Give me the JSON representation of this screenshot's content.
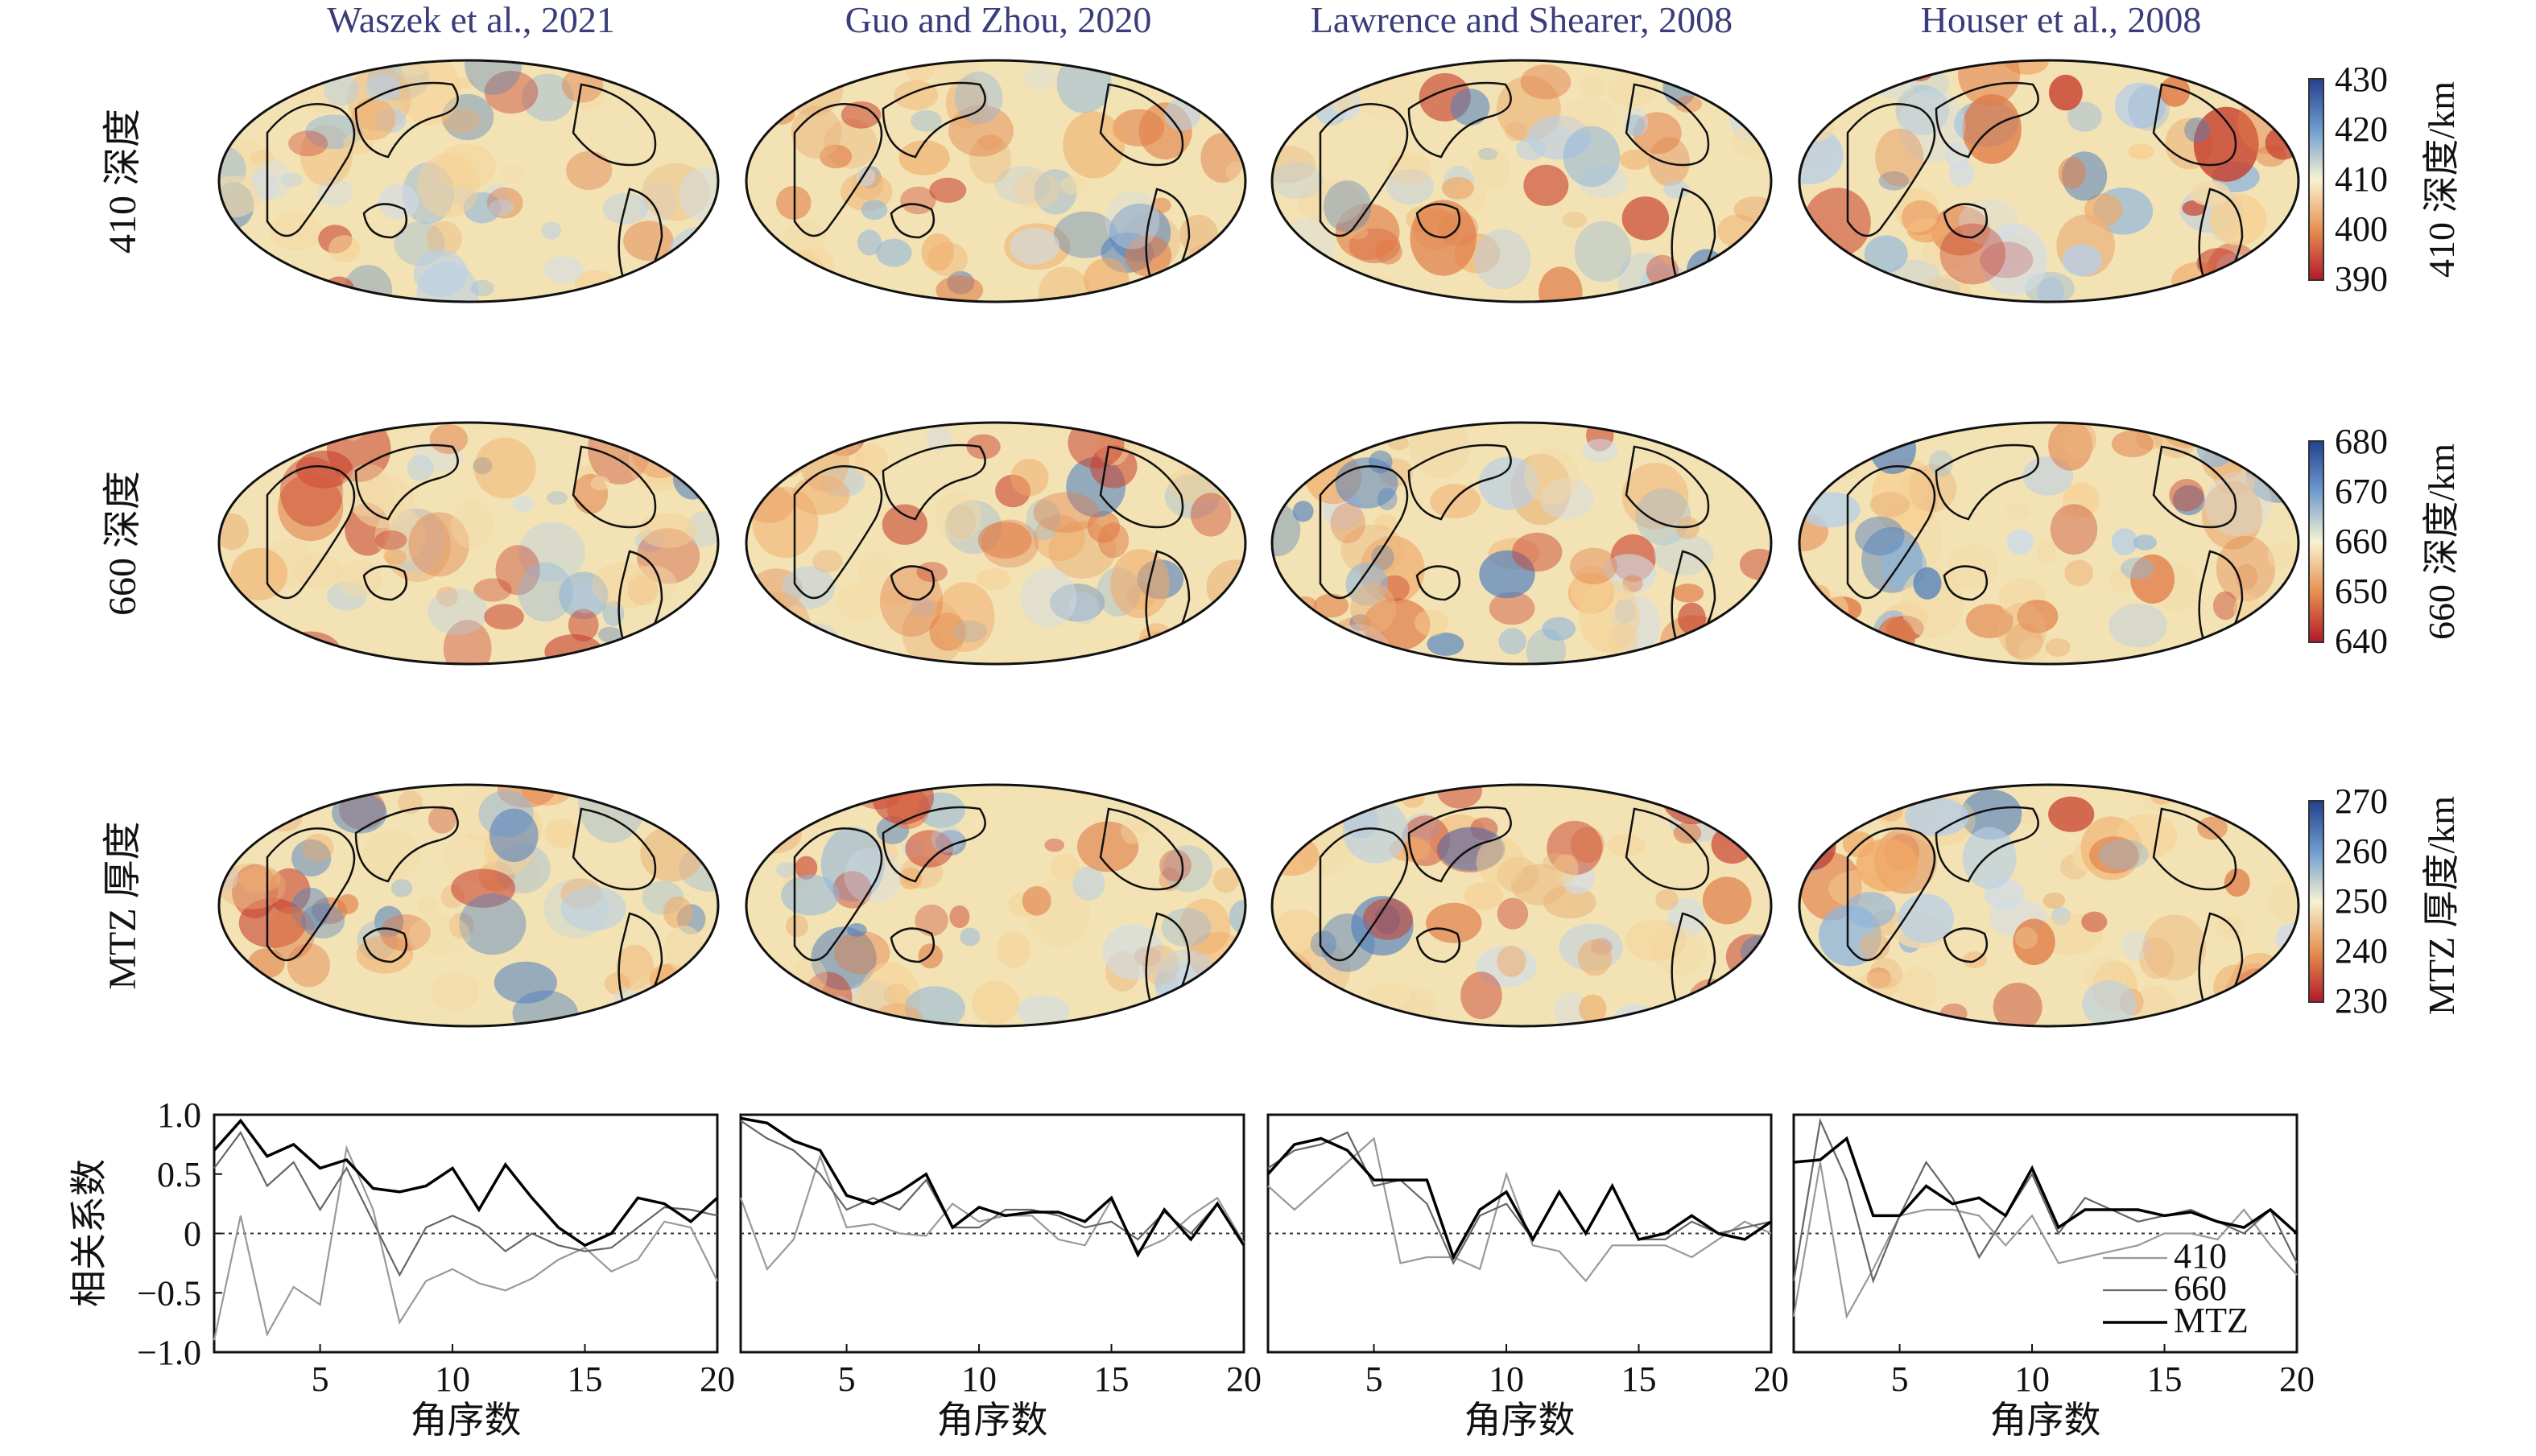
{
  "figure": {
    "columns": [
      {
        "title": "Waszek et al., 2021"
      },
      {
        "title": "Guo and Zhou, 2020"
      },
      {
        "title": "Lawrence and Shearer, 2008"
      },
      {
        "title": "Houser et al., 2008"
      }
    ],
    "rows": [
      {
        "label": "410 深度",
        "colorbar": {
          "label": "410 深度/km",
          "ticks": [
            "430",
            "420",
            "410",
            "400",
            "390"
          ]
        }
      },
      {
        "label": "660 深度",
        "colorbar": {
          "label": "660 深度/km",
          "ticks": [
            "680",
            "670",
            "660",
            "650",
            "640"
          ]
        }
      },
      {
        "label": "MTZ 厚度",
        "colorbar": {
          "label": "MTZ 厚度/km",
          "ticks": [
            "270",
            "260",
            "250",
            "240",
            "230"
          ]
        }
      }
    ],
    "colormap": {
      "low": "#b2182b",
      "mid": "#f7f3d2",
      "high": "#2c5ea8"
    }
  },
  "chart_data": {
    "type": "line",
    "ylabel": "相关系数",
    "xlabel": "角序数",
    "xlim": [
      1,
      20
    ],
    "ylim": [
      -1,
      1
    ],
    "xticks": [
      "5",
      "10",
      "15",
      "20"
    ],
    "yticks": [
      "1.0",
      "0.5",
      "0",
      "−0.5",
      "−1.0"
    ],
    "x": [
      1,
      2,
      3,
      4,
      5,
      6,
      7,
      8,
      9,
      10,
      11,
      12,
      13,
      14,
      15,
      16,
      17,
      18,
      19,
      20
    ],
    "legend": [
      "410",
      "660",
      "MTZ"
    ],
    "panels": [
      {
        "series": [
          {
            "name": "410",
            "color": "#999999",
            "values": [
              -0.9,
              0.15,
              -0.85,
              -0.45,
              -0.6,
              0.72,
              0.2,
              -0.75,
              -0.4,
              -0.3,
              -0.42,
              -0.48,
              -0.38,
              -0.22,
              -0.12,
              -0.32,
              -0.22,
              0.1,
              0.05,
              -0.4
            ]
          },
          {
            "name": "660",
            "color": "#666666",
            "values": [
              0.55,
              0.85,
              0.4,
              0.6,
              0.2,
              0.55,
              0.1,
              -0.35,
              0.05,
              0.15,
              0.05,
              -0.15,
              0.0,
              -0.1,
              -0.15,
              -0.12,
              0.05,
              0.22,
              0.2,
              0.15
            ]
          },
          {
            "name": "MTZ",
            "color": "#000000",
            "values": [
              0.7,
              0.95,
              0.65,
              0.75,
              0.55,
              0.62,
              0.38,
              0.35,
              0.4,
              0.55,
              0.2,
              0.58,
              0.3,
              0.05,
              -0.1,
              0.0,
              0.3,
              0.25,
              0.1,
              0.3
            ]
          }
        ]
      },
      {
        "series": [
          {
            "name": "410",
            "color": "#999999",
            "values": [
              0.3,
              -0.3,
              -0.05,
              0.65,
              0.05,
              0.08,
              0.0,
              -0.02,
              0.25,
              0.1,
              0.15,
              0.15,
              -0.05,
              -0.1,
              0.28,
              -0.15,
              -0.05,
              0.15,
              0.3,
              -0.08
            ]
          },
          {
            "name": "660",
            "color": "#666666",
            "values": [
              0.95,
              0.8,
              0.7,
              0.5,
              0.2,
              0.3,
              0.2,
              0.45,
              0.05,
              0.05,
              0.2,
              0.2,
              0.15,
              0.05,
              0.1,
              -0.05,
              0.18,
              0.0,
              0.25,
              -0.1
            ]
          },
          {
            "name": "MTZ",
            "color": "#000000",
            "values": [
              0.97,
              0.93,
              0.78,
              0.7,
              0.32,
              0.25,
              0.35,
              0.5,
              0.05,
              0.22,
              0.15,
              0.18,
              0.18,
              0.1,
              0.3,
              -0.18,
              0.2,
              -0.05,
              0.25,
              -0.1
            ]
          }
        ]
      },
      {
        "series": [
          {
            "name": "410",
            "color": "#999999",
            "values": [
              0.4,
              0.2,
              0.4,
              0.6,
              0.8,
              -0.25,
              -0.2,
              -0.2,
              -0.3,
              0.5,
              -0.1,
              -0.15,
              -0.4,
              -0.1,
              -0.1,
              -0.1,
              -0.2,
              -0.05,
              0.1,
              0.0
            ]
          },
          {
            "name": "660",
            "color": "#666666",
            "values": [
              0.55,
              0.7,
              0.75,
              0.85,
              0.4,
              0.45,
              0.25,
              -0.25,
              0.15,
              0.25,
              -0.05,
              0.35,
              0.0,
              0.4,
              -0.05,
              -0.05,
              0.1,
              0.0,
              0.05,
              0.1
            ]
          },
          {
            "name": "MTZ",
            "color": "#000000",
            "values": [
              0.5,
              0.75,
              0.8,
              0.7,
              0.45,
              0.45,
              0.45,
              -0.2,
              0.2,
              0.35,
              -0.05,
              0.35,
              0.0,
              0.4,
              -0.05,
              0.0,
              0.15,
              0.0,
              -0.05,
              0.1
            ]
          }
        ]
      },
      {
        "series": [
          {
            "name": "410",
            "color": "#999999",
            "values": [
              -0.7,
              0.6,
              -0.7,
              -0.3,
              0.15,
              0.2,
              0.2,
              0.15,
              -0.1,
              0.15,
              -0.25,
              -0.2,
              -0.15,
              -0.1,
              0.0,
              0.0,
              -0.05,
              0.2,
              -0.1,
              -0.35
            ]
          },
          {
            "name": "660",
            "color": "#666666",
            "values": [
              -0.4,
              0.95,
              0.45,
              -0.4,
              0.15,
              0.6,
              0.3,
              -0.2,
              0.15,
              0.5,
              0.0,
              0.3,
              0.2,
              0.1,
              0.15,
              0.2,
              0.1,
              0.0,
              0.2,
              -0.25
            ]
          },
          {
            "name": "MTZ",
            "color": "#000000",
            "values": [
              0.6,
              0.62,
              0.8,
              0.15,
              0.15,
              0.4,
              0.25,
              0.3,
              0.15,
              0.55,
              0.05,
              0.2,
              0.2,
              0.2,
              0.15,
              0.18,
              0.1,
              0.05,
              0.2,
              0.0
            ]
          }
        ]
      }
    ]
  }
}
